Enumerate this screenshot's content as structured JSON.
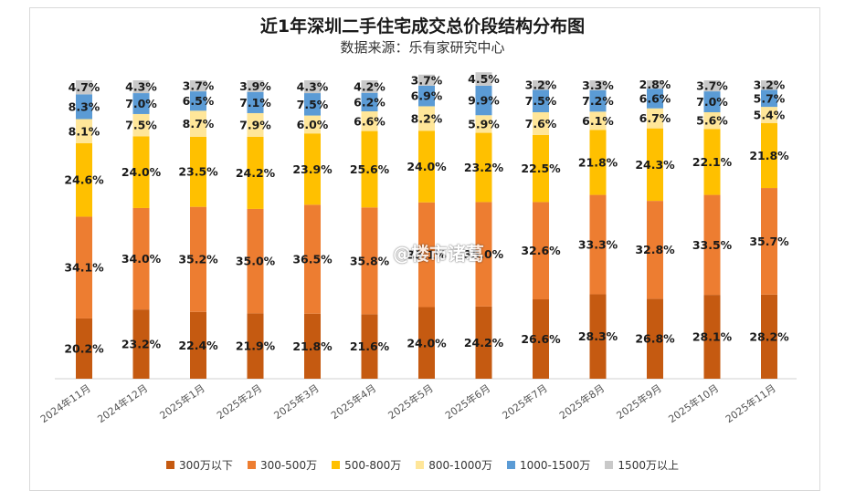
{
  "chart_data": {
    "type": "bar",
    "stacked": true,
    "title": "近1年深圳二手住宅成交总价段结构分布图",
    "subtitle": "数据来源：乐有家研究中心",
    "categories": [
      "2024年11月",
      "2024年12月",
      "2025年1月",
      "2025年2月",
      "2025年3月",
      "2025年4月",
      "2025年5月",
      "2025年6月",
      "2025年7月",
      "2025年8月",
      "2025年9月",
      "2025年10月",
      "2025年11月"
    ],
    "series": [
      {
        "name": "300万以下",
        "color": "#c55a11",
        "values": [
          20.2,
          23.2,
          22.4,
          21.9,
          21.8,
          21.6,
          24.0,
          24.2,
          26.6,
          28.3,
          26.8,
          28.1,
          28.2
        ]
      },
      {
        "name": "300-500万",
        "color": "#ed7d31",
        "values": [
          34.1,
          34.0,
          35.2,
          35.0,
          36.5,
          35.8,
          35.1,
          35.0,
          32.6,
          33.3,
          32.8,
          33.5,
          35.7
        ]
      },
      {
        "name": "500-800万",
        "color": "#ffc000",
        "values": [
          24.6,
          24.0,
          23.5,
          24.2,
          23.9,
          25.6,
          24.0,
          23.2,
          22.5,
          21.8,
          24.3,
          22.1,
          21.8
        ]
      },
      {
        "name": "800-1000万",
        "color": "#ffe699",
        "values": [
          8.1,
          7.5,
          8.7,
          7.9,
          6.0,
          6.6,
          8.2,
          5.9,
          7.6,
          6.1,
          6.7,
          5.6,
          5.4
        ]
      },
      {
        "name": "1000-1500万",
        "color": "#5b9bd5",
        "values": [
          8.3,
          7.0,
          6.5,
          7.1,
          7.5,
          6.2,
          6.9,
          9.9,
          7.5,
          7.2,
          6.6,
          7.0,
          5.7
        ]
      },
      {
        "name": "1500万以上",
        "color": "#c9c9c9",
        "values": [
          4.7,
          4.3,
          3.7,
          3.9,
          4.3,
          4.2,
          3.7,
          4.5,
          3.2,
          3.3,
          2.8,
          3.7,
          3.2
        ]
      }
    ],
    "ylim": [
      0,
      100
    ],
    "grid": false,
    "legend_position": "bottom"
  },
  "watermark_text": "@楼市诸葛"
}
